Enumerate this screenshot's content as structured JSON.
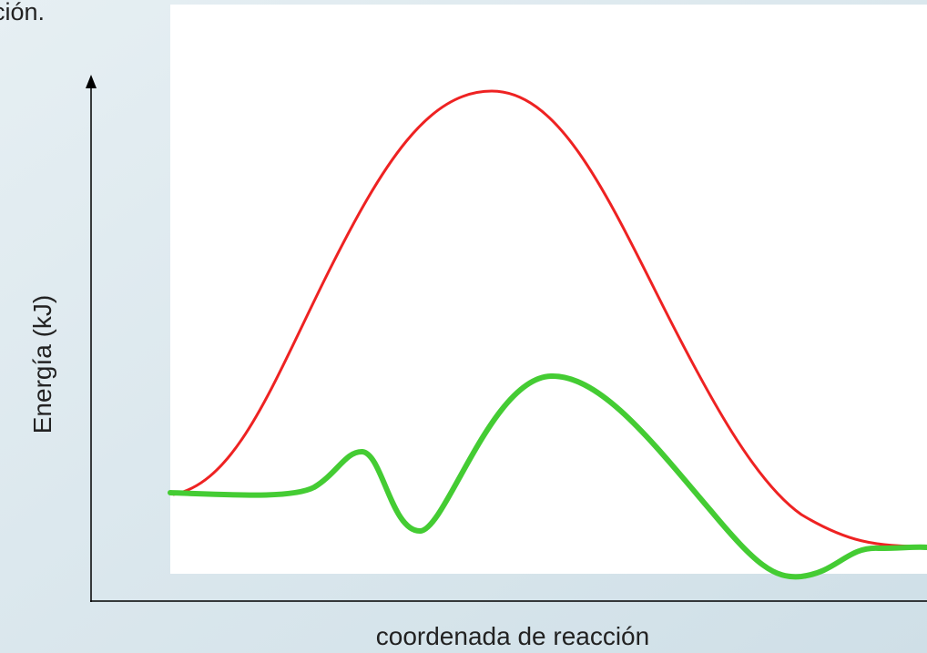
{
  "slide": {
    "text_fragment": "ción."
  },
  "diagram": {
    "y_axis_label": "Energía (kJ)",
    "x_axis_label": "coordenada de reacción"
  }
}
